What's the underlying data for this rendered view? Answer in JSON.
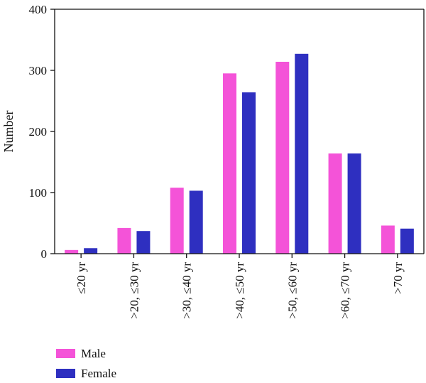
{
  "chart_data": {
    "type": "bar",
    "ylabel": "Number",
    "xlabel": "",
    "ylim": [
      0,
      400
    ],
    "yticks": [
      0,
      100,
      200,
      300,
      400
    ],
    "categories": [
      "≤20 yr",
      ">20, ≤30 yr",
      ">30, ≤40 yr",
      ">40, ≤50 yr",
      ">50, ≤60 yr",
      ">60, ≤70 yr",
      ">70 yr"
    ],
    "series": [
      {
        "name": "Male",
        "color": "#f453d8",
        "values": [
          6,
          42,
          108,
          295,
          314,
          164,
          46
        ]
      },
      {
        "name": "Female",
        "color": "#2e2fc0",
        "values": [
          9,
          37,
          103,
          264,
          327,
          164,
          41
        ]
      }
    ],
    "legend_position": "bottom-left",
    "grid": false
  }
}
